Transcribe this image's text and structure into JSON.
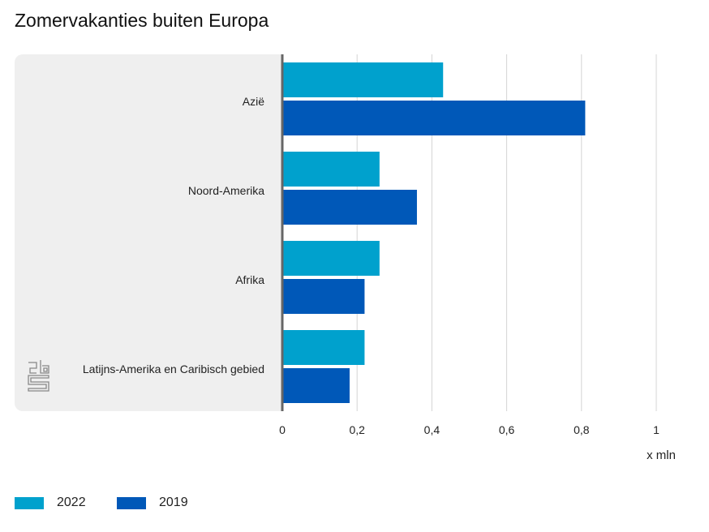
{
  "title": "Zomervakanties buiten Europa",
  "chart_data": {
    "type": "bar",
    "orientation": "horizontal",
    "title": "Zomervakanties buiten Europa",
    "categories": [
      "Azië",
      "Noord-Amerika",
      "Afrika",
      "Latijns-Amerika en Caribisch gebied"
    ],
    "series": [
      {
        "name": "2022",
        "color": "#00a1cd",
        "values": [
          0.43,
          0.26,
          0.26,
          0.22
        ]
      },
      {
        "name": "2019",
        "color": "#0058b8",
        "values": [
          0.81,
          0.36,
          0.22,
          0.18
        ]
      }
    ],
    "xlim": [
      0,
      1
    ],
    "xticks": [
      "0",
      "0,2",
      "0,4",
      "0,6",
      "0,8",
      "1"
    ],
    "xlabel": "x mln",
    "grid": true,
    "legend": "bottom-left"
  },
  "logo": "cbs"
}
